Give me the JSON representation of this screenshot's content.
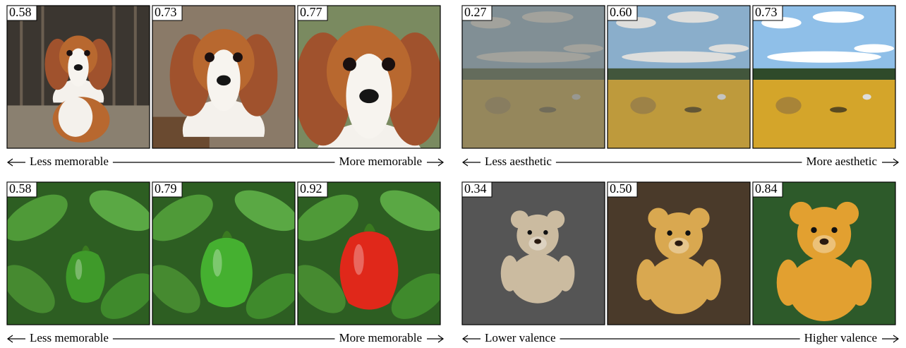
{
  "panels": [
    {
      "scores": [
        "0.58",
        "0.73",
        "0.77"
      ],
      "left": "Less memorable",
      "right": "More memorable"
    },
    {
      "scores": [
        "0.27",
        "0.60",
        "0.73"
      ],
      "left": "Less aesthetic",
      "right": "More aesthetic"
    },
    {
      "scores": [
        "0.58",
        "0.79",
        "0.92"
      ],
      "left": "Less memorable",
      "right": "More memorable"
    },
    {
      "scores": [
        "0.34",
        "0.50",
        "0.84"
      ],
      "left": "Lower valence",
      "right": "Higher valence"
    }
  ]
}
